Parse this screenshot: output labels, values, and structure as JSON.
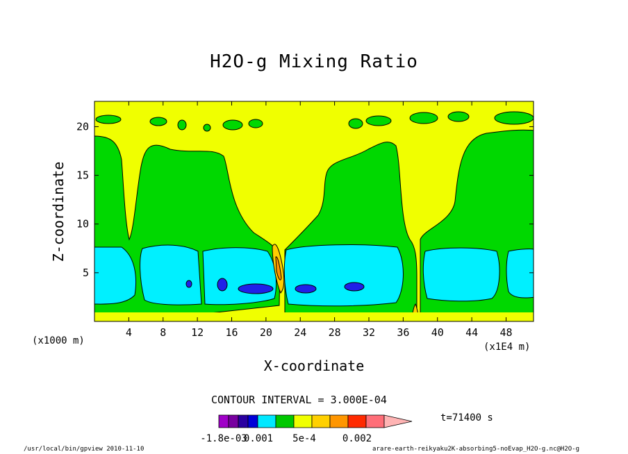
{
  "chart_data": {
    "type": "contour",
    "title": "H2O-g Mixing Ratio",
    "xlabel": "X-coordinate",
    "ylabel": "Z-coordinate",
    "x_unit_left": "(x1000 m)",
    "x_unit_right": "(x1E4 m)",
    "x_ticks": [
      "4",
      "8",
      "12",
      "16",
      "20",
      "24",
      "28",
      "32",
      "36",
      "40",
      "44",
      "48"
    ],
    "x_tick_values": [
      4,
      8,
      12,
      16,
      20,
      24,
      28,
      32,
      36,
      40,
      44,
      48
    ],
    "y_ticks": [
      "5",
      "10",
      "15",
      "20"
    ],
    "y_tick_values": [
      5,
      10,
      15,
      20
    ],
    "xlim": [
      0,
      51.2
    ],
    "ylim": [
      0,
      22.6
    ],
    "contour_interval": "CONTOUR INTERVAL = 3.000E-04",
    "time": "t=71400 s",
    "colorbar_labels": [
      "-1.8e-03",
      "0.001",
      "5e-4",
      "0.002"
    ],
    "colorbar_colors": [
      "#a000c8",
      "#7800a0",
      "#2a00a0",
      "#0000d8",
      "#00e8ff",
      "#00c800",
      "#f0ff00",
      "#ffd000",
      "#ff9600",
      "#ff2a00",
      "#ff6e78",
      "#ffb4b4"
    ],
    "levels_colors": {
      "background": "#f0ff00",
      "moist": "#00d800",
      "very_moist": "#00f0ff",
      "peak": "#2020e8",
      "dry_ridge": "#ffcc00"
    }
  },
  "footer": {
    "left": "/usr/local/bin/gpview  2010-11-10",
    "right": "arare-earth-reikyaku2K-absorbing5-noEvap_H2O-g.nc@H2O-g"
  }
}
